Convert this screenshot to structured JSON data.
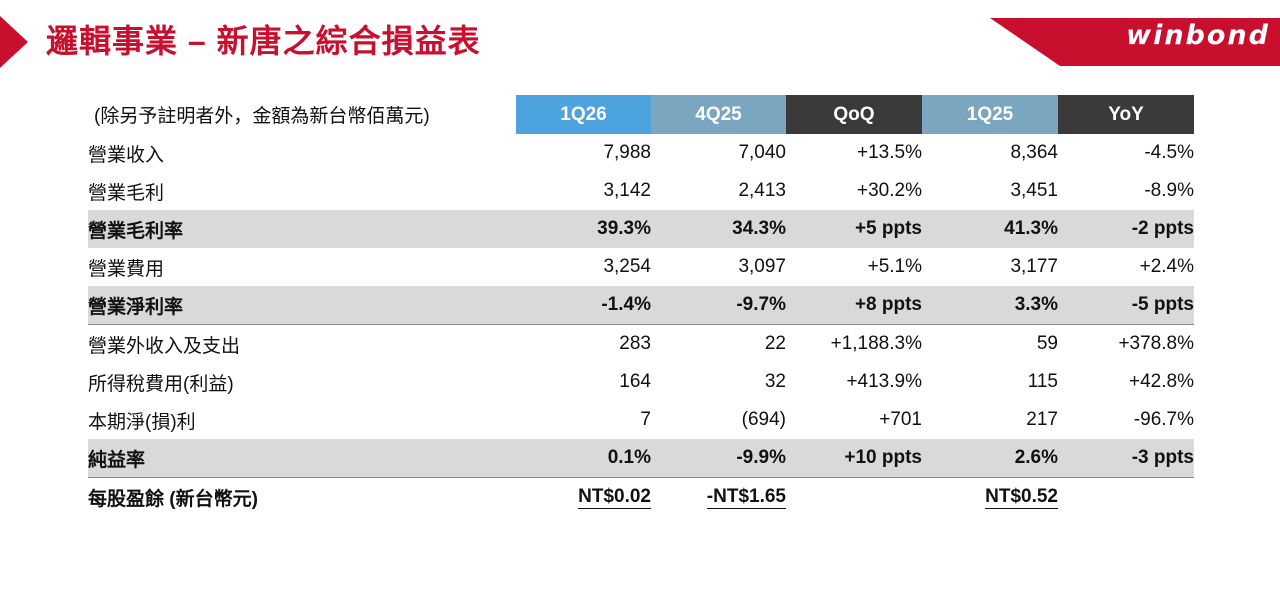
{
  "header": {
    "title": "邏輯事業 – 新唐之綜合損益表",
    "brand": "winbond",
    "accent_color": "#c8102e"
  },
  "table": {
    "note": "(除另予註明者外，金額為新台幣佰萬元)",
    "columns": [
      "1Q26",
      "4Q25",
      "QoQ",
      "1Q25",
      "YoY"
    ],
    "rows": [
      {
        "label": "營業收入",
        "values": [
          "7,988",
          "7,040",
          "+13.5%",
          "8,364",
          "-4.5%"
        ]
      },
      {
        "label": "營業毛利",
        "values": [
          "3,142",
          "2,413",
          "+30.2%",
          "3,451",
          "-8.9%"
        ]
      },
      {
        "label": "營業毛利率",
        "values": [
          "39.3%",
          "34.3%",
          "+5 ppts",
          "41.3%",
          "-2 ppts"
        ]
      },
      {
        "label": "營業費用",
        "values": [
          "3,254",
          "3,097",
          "+5.1%",
          "3,177",
          "+2.4%"
        ]
      },
      {
        "label": "營業淨利率",
        "values": [
          "-1.4%",
          "-9.7%",
          "+8 ppts",
          "3.3%",
          "-5 ppts"
        ]
      },
      {
        "label": "營業外收入及支出",
        "values": [
          "283",
          "22",
          "+1,188.3%",
          "59",
          "+378.8%"
        ]
      },
      {
        "label": "所得稅費用(利益)",
        "values": [
          "164",
          "32",
          "+413.9%",
          "115",
          "+42.8%"
        ]
      },
      {
        "label": "本期淨(損)利",
        "values": [
          "7",
          "(694)",
          "+701",
          "217",
          "-96.7%"
        ]
      },
      {
        "label": "純益率",
        "values": [
          "0.1%",
          "-9.9%",
          "+10 ppts",
          "2.6%",
          "-3 ppts"
        ]
      },
      {
        "label": "每股盈餘 (新台幣元)",
        "values": [
          "NT$0.02",
          "-NT$1.65",
          "",
          "NT$0.52",
          ""
        ]
      }
    ]
  }
}
